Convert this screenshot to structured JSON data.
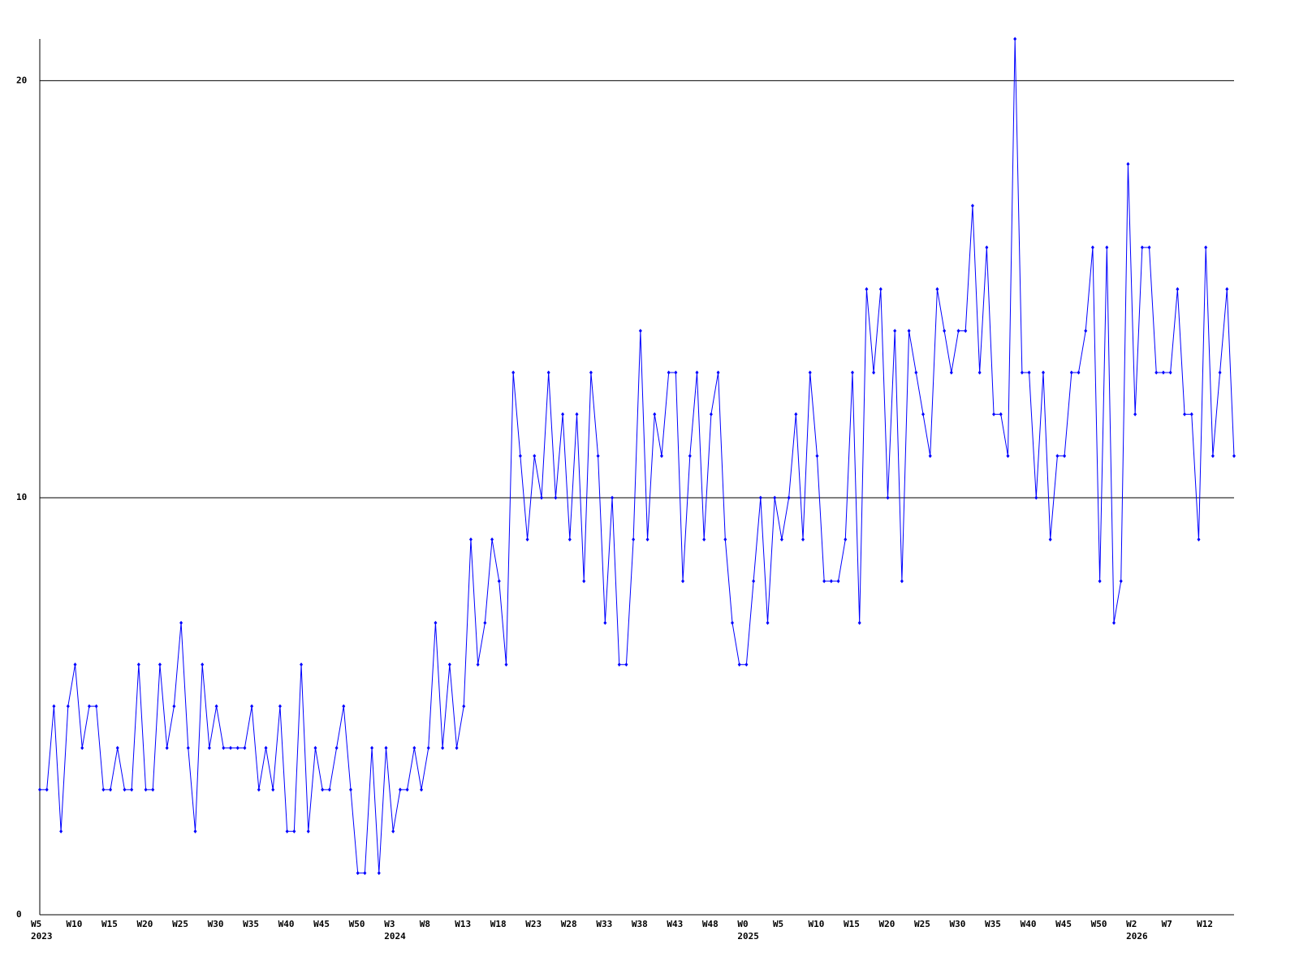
{
  "chart_data": {
    "type": "line",
    "categories": [
      "W5",
      null,
      null,
      null,
      null,
      "W10",
      null,
      null,
      null,
      null,
      "W15",
      null,
      null,
      null,
      null,
      "W20",
      null,
      null,
      null,
      null,
      "W25",
      null,
      null,
      null,
      null,
      "W30",
      null,
      null,
      null,
      null,
      "W35",
      null,
      null,
      null,
      null,
      "W40",
      null,
      null,
      null,
      null,
      "W45",
      null,
      null,
      null,
      null,
      "W50",
      null,
      null,
      null,
      null,
      "W3",
      null,
      null,
      null,
      null,
      "W8",
      null,
      null,
      null,
      null,
      "W13",
      null,
      null,
      null,
      null,
      "W18",
      null,
      null,
      null,
      null,
      "W23",
      null,
      null,
      null,
      null,
      "W28",
      null,
      null,
      null,
      null,
      "W33",
      null,
      null,
      null,
      null,
      "W38",
      null,
      null,
      null,
      null,
      "W43",
      null,
      null,
      null,
      null,
      "W48",
      null,
      null,
      null,
      null,
      "W0",
      null,
      null,
      null,
      null,
      "W5",
      null,
      null,
      null,
      null,
      "W10",
      null,
      null,
      null,
      null,
      "W15",
      null,
      null,
      null,
      null,
      "W20",
      null,
      null,
      null,
      null,
      "W25",
      null,
      null,
      null,
      null,
      "W30",
      null,
      null,
      null,
      null,
      "W35",
      null,
      null,
      null,
      null,
      "W40",
      null,
      null,
      null,
      null,
      "W45",
      null,
      null,
      null,
      null,
      "W50",
      null,
      null,
      null,
      null,
      "W2",
      null,
      null,
      null,
      null,
      "W7",
      null,
      null,
      null,
      null,
      "W12",
      null,
      null,
      null,
      null
    ],
    "year_labels": [
      "2023",
      null,
      null,
      null,
      null,
      null,
      null,
      null,
      null,
      null,
      null,
      null,
      null,
      null,
      null,
      null,
      null,
      null,
      null,
      null,
      null,
      null,
      null,
      null,
      null,
      null,
      null,
      null,
      null,
      null,
      null,
      null,
      null,
      null,
      null,
      null,
      null,
      null,
      null,
      null,
      null,
      null,
      null,
      null,
      null,
      null,
      null,
      null,
      null,
      null,
      "2024",
      null,
      null,
      null,
      null,
      null,
      null,
      null,
      null,
      null,
      null,
      null,
      null,
      null,
      null,
      null,
      null,
      null,
      null,
      null,
      null,
      null,
      null,
      null,
      null,
      null,
      null,
      null,
      null,
      null,
      null,
      null,
      null,
      null,
      null,
      null,
      null,
      null,
      null,
      null,
      null,
      null,
      null,
      null,
      null,
      null,
      null,
      null,
      null,
      null,
      "2025",
      null,
      null,
      null,
      null,
      null,
      null,
      null,
      null,
      null,
      null,
      null,
      null,
      null,
      null,
      null,
      null,
      null,
      null,
      null,
      null,
      null,
      null,
      null,
      null,
      null,
      null,
      null,
      null,
      null,
      null,
      null,
      null,
      null,
      null,
      null,
      null,
      null,
      null,
      null,
      null,
      null,
      null,
      null,
      null,
      null,
      null,
      null,
      null,
      null,
      null,
      null,
      null,
      null,
      null,
      "2026",
      null,
      null,
      null,
      null,
      null,
      null,
      null,
      null,
      null,
      null,
      null,
      null,
      null,
      null
    ],
    "series": [
      {
        "color": "#0000ff",
        "values": [
          3,
          3,
          5,
          2,
          5,
          6,
          4,
          5,
          5,
          3,
          3,
          4,
          3,
          3,
          6,
          3,
          3,
          6,
          4,
          5,
          7,
          4,
          2,
          6,
          4,
          5,
          4,
          4,
          4,
          4,
          5,
          3,
          4,
          3,
          5,
          2,
          2,
          6,
          2,
          4,
          3,
          3,
          4,
          5,
          3,
          1,
          1,
          4,
          1,
          4,
          2,
          3,
          3,
          4,
          3,
          4,
          7,
          4,
          6,
          4,
          5,
          9,
          6,
          7,
          9,
          8,
          6,
          13,
          11,
          9,
          11,
          10,
          13,
          10,
          12,
          9,
          12,
          8,
          13,
          11,
          7,
          10,
          6,
          6,
          9,
          14,
          9,
          12,
          11,
          13,
          13,
          8,
          11,
          13,
          9,
          12,
          13,
          9,
          7,
          6,
          6,
          8,
          10,
          7,
          10,
          9,
          10,
          12,
          9,
          13,
          11,
          8,
          8,
          8,
          9,
          13,
          7,
          15,
          13,
          15,
          10,
          14,
          8,
          14,
          13,
          12,
          11,
          15,
          14,
          13,
          14,
          14,
          17,
          13,
          16,
          12,
          12,
          11,
          21,
          13,
          13,
          10,
          13,
          9,
          11,
          11,
          13,
          13,
          14,
          16,
          8,
          16,
          7,
          8,
          18,
          12,
          16,
          16,
          13,
          13,
          13,
          15,
          12,
          12,
          9,
          16,
          11,
          13,
          15,
          11
        ]
      }
    ],
    "ylim": [
      0,
      21
    ],
    "yticks": [
      0,
      10,
      20
    ],
    "grid": true
  }
}
